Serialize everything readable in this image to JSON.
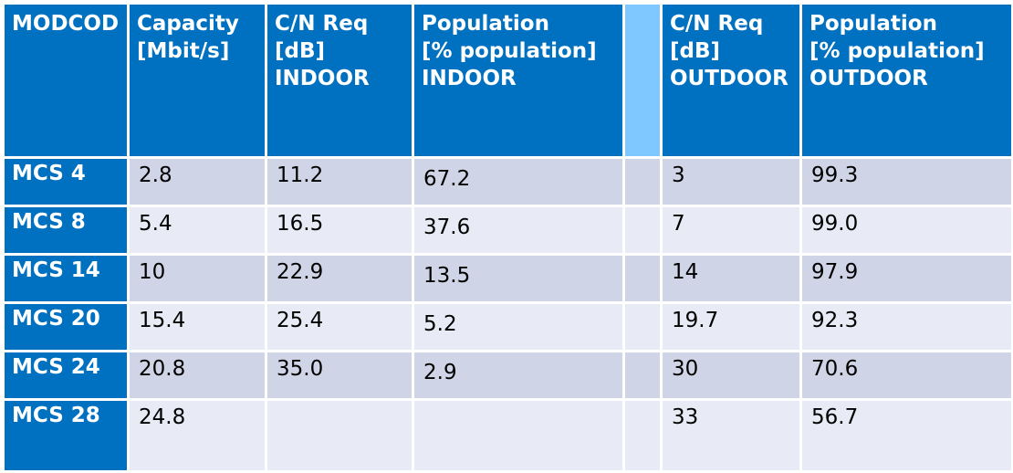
{
  "table": {
    "headers": {
      "modcod": [
        "MODCOD"
      ],
      "capacity": [
        "Capacity",
        "[Mbit/s]"
      ],
      "cn_indoor": [
        "C/N Req",
        "[dB]",
        "INDOOR"
      ],
      "pop_indoor": [
        "Population",
        "[% population]",
        "INDOOR"
      ],
      "cn_outdoor": [
        "C/N Req",
        "[dB]",
        "OUTDOOR"
      ],
      "pop_outdoor": [
        "Population",
        "[% population]",
        "OUTDOOR"
      ]
    },
    "rows": [
      {
        "modcod": "MCS 4",
        "capacity": "2.8",
        "cn_indoor": "11.2",
        "pop_indoor": "67.2",
        "cn_outdoor": "3",
        "pop_outdoor": "99.3"
      },
      {
        "modcod": "MCS 8",
        "capacity": "5.4",
        "cn_indoor": "16.5",
        "pop_indoor": "37.6",
        "cn_outdoor": "7",
        "pop_outdoor": "99.0"
      },
      {
        "modcod": "MCS 14",
        "capacity": "10",
        "cn_indoor": "22.9",
        "pop_indoor": "13.5",
        "cn_outdoor": "14",
        "pop_outdoor": "97.9"
      },
      {
        "modcod": "MCS 20",
        "capacity": "15.4",
        "cn_indoor": "25.4",
        "pop_indoor": "5.2",
        "cn_outdoor": "19.7",
        "pop_outdoor": "92.3"
      },
      {
        "modcod": "MCS 24",
        "capacity": "20.8",
        "cn_indoor": "35.0",
        "pop_indoor": "2.9",
        "cn_outdoor": "30",
        "pop_outdoor": "70.6"
      },
      {
        "modcod": "MCS 28",
        "capacity": "24.8",
        "cn_indoor": "",
        "pop_indoor": "",
        "cn_outdoor": "33",
        "pop_outdoor": "56.7"
      }
    ]
  },
  "colors": {
    "header_bg": "#0070c0",
    "gap_column": "#7fc8ff",
    "row_dark": "#cfd5e7",
    "row_light": "#e8ebf5"
  }
}
